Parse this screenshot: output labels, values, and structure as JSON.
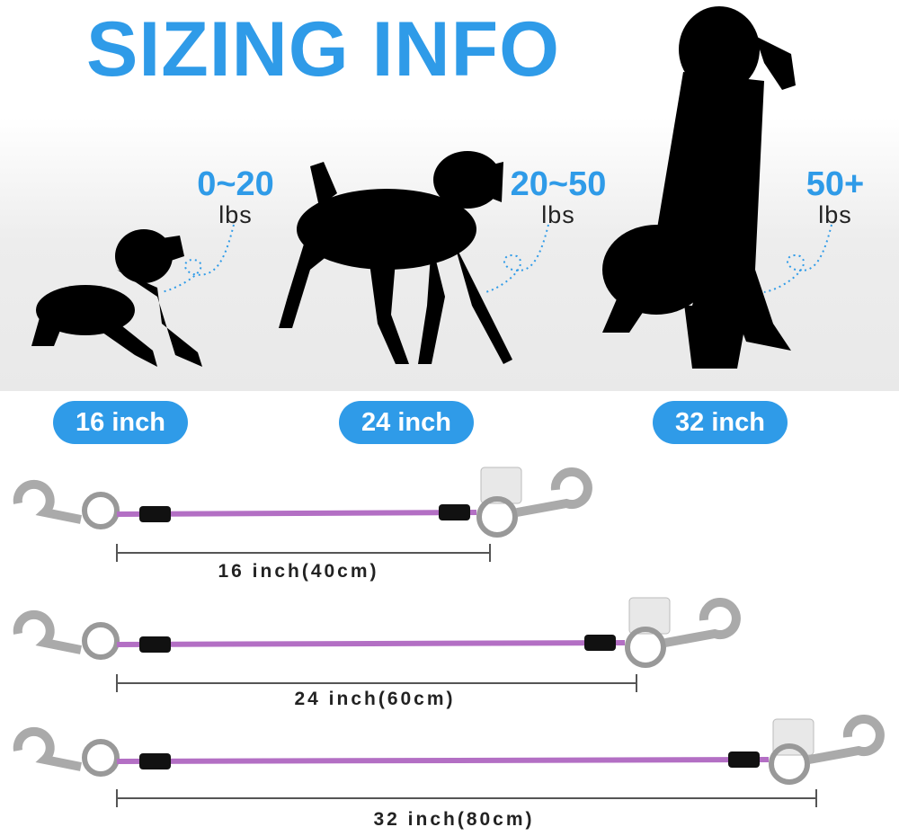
{
  "title": "SIZING INFO",
  "weights": [
    {
      "value": "0~20",
      "unit": "lbs"
    },
    {
      "value": "20~50",
      "unit": "lbs"
    },
    {
      "value": "50+",
      "unit": "lbs"
    }
  ],
  "sizes": [
    "16 inch",
    "24 inch",
    "32 inch"
  ],
  "leashes": [
    {
      "label": "16 inch(40cm)"
    },
    {
      "label": "24 inch(60cm)"
    },
    {
      "label": "32 inch(80cm)"
    }
  ],
  "colors": {
    "accent": "#2f9be8",
    "cable": "#b36fc4",
    "silhouette": "#000000"
  }
}
